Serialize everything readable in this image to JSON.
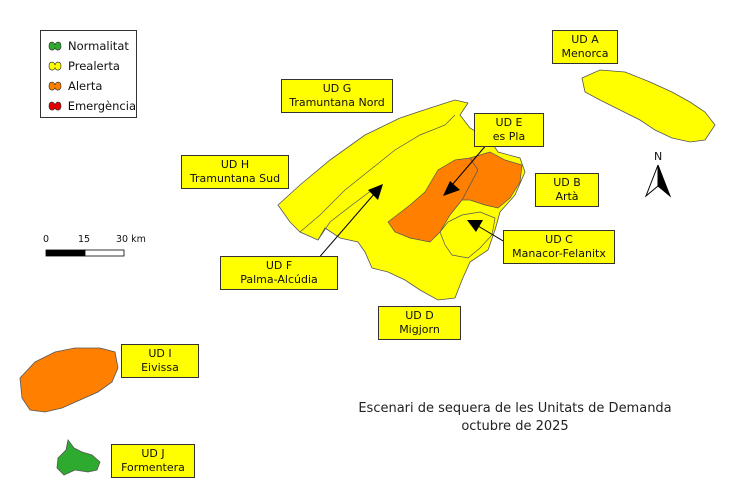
{
  "legend": {
    "items": [
      {
        "label": "Normalitat",
        "color": "#2eaa2e"
      },
      {
        "label": "Prealerta",
        "color": "#ffff00"
      },
      {
        "label": "Alerta",
        "color": "#ff8000"
      },
      {
        "label": "Emergència",
        "color": "#e60000"
      }
    ]
  },
  "units": {
    "a": {
      "code": "UD A",
      "name": "Menorca",
      "status": "Prealerta"
    },
    "b": {
      "code": "UD B",
      "name": "Artà",
      "status": "Alerta"
    },
    "c": {
      "code": "UD C",
      "name": "Manacor-Felanitx",
      "status": "Prealerta"
    },
    "d": {
      "code": "UD D",
      "name": "Migjorn",
      "status": "Prealerta"
    },
    "e": {
      "code": "UD E",
      "name": "es Pla",
      "status": "Alerta"
    },
    "f": {
      "code": "UD F",
      "name": "Palma-Alcúdia",
      "status": "Prealerta"
    },
    "g": {
      "code": "UD G",
      "name": "Tramuntana Nord",
      "status": "Prealerta"
    },
    "h": {
      "code": "UD H",
      "name": "Tramuntana Sud",
      "status": "Prealerta"
    },
    "i": {
      "code": "UD I",
      "name": "Eivissa",
      "status": "Alerta"
    },
    "j": {
      "code": "UD J",
      "name": "Formentera",
      "status": "Normalitat"
    }
  },
  "scale_bar": {
    "ticks": [
      "0",
      "15",
      "30 km"
    ]
  },
  "north_arrow": {
    "label": "N"
  },
  "title": {
    "line1": "Escenari de sequera de les Unitats de Demanda",
    "line2": "octubre de 2025"
  }
}
